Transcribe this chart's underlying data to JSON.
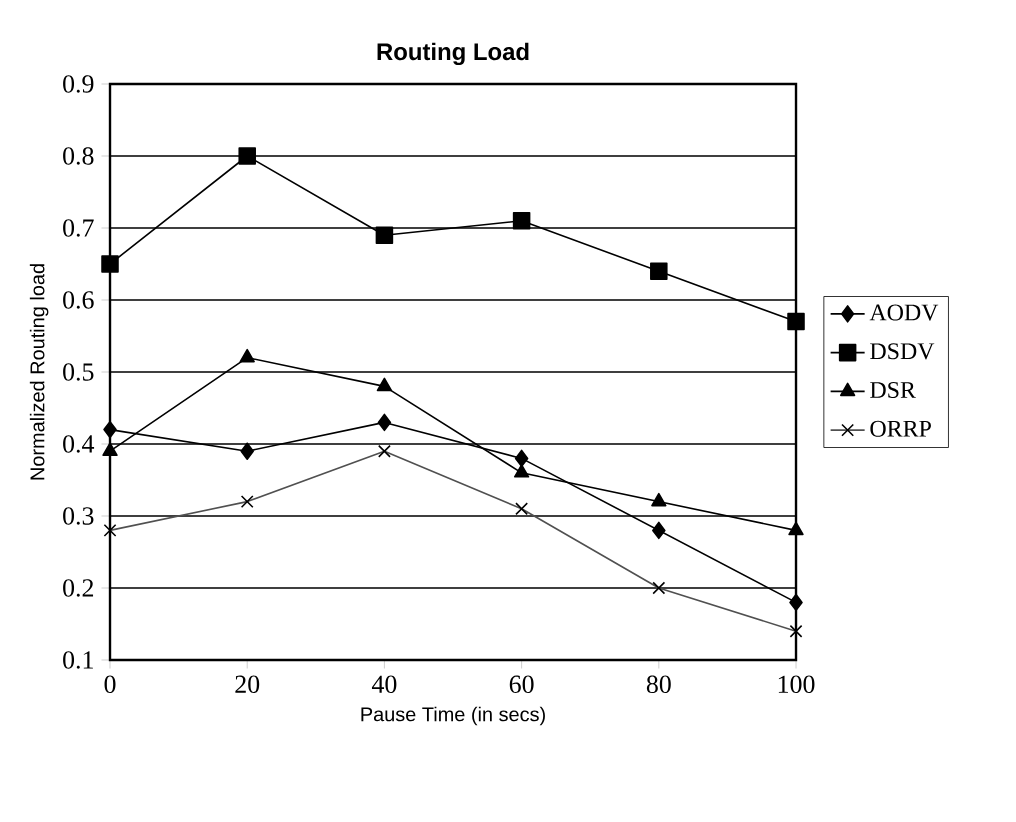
{
  "chart_data": {
    "type": "line",
    "title": "Routing Load",
    "xlabel": "Pause Time (in secs)",
    "ylabel": "Normalized Routing load",
    "x": [
      0,
      20,
      40,
      60,
      80,
      100
    ],
    "series": [
      {
        "name": "AODV",
        "color": "#000000",
        "marker": "diamond",
        "values": [
          0.42,
          0.39,
          0.43,
          0.38,
          0.28,
          0.18
        ]
      },
      {
        "name": "DSDV",
        "color": "#000000",
        "marker": "square",
        "values": [
          0.65,
          0.8,
          0.69,
          0.71,
          0.64,
          0.57
        ]
      },
      {
        "name": "DSR",
        "color": "#000000",
        "marker": "triangle",
        "values": [
          0.39,
          0.52,
          0.48,
          0.36,
          0.32,
          0.28
        ]
      },
      {
        "name": "ORRP",
        "color": "#505050",
        "marker": "cross",
        "values": [
          0.28,
          0.32,
          0.39,
          0.31,
          0.2,
          0.14
        ]
      }
    ],
    "xlim": [
      0,
      100
    ],
    "xticks": [
      0,
      20,
      40,
      60,
      80,
      100
    ],
    "ylim": [
      0.1,
      0.9
    ],
    "yticks": [
      0.1,
      0.2,
      0.3,
      0.4,
      0.5,
      0.6,
      0.7,
      0.8,
      0.9
    ],
    "grid": "y",
    "legend": "right",
    "line_style": "solid"
  }
}
